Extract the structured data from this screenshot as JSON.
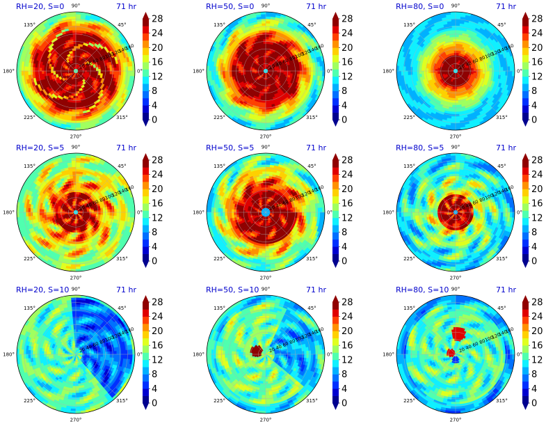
{
  "figure": {
    "time_label": "71 hr",
    "angle_labels": [
      "90°",
      "45°",
      "0°",
      "315°",
      "270°",
      "225°",
      "180°",
      "135°"
    ],
    "radial_labels": [
      "20",
      "40",
      "60",
      "80",
      "100",
      "120",
      "140",
      "160"
    ],
    "colorbar_ticks": [
      "0",
      "4",
      "8",
      "12",
      "16",
      "20",
      "24",
      "28"
    ],
    "colors": [
      "#00008f",
      "#0000d0",
      "#0030ff",
      "#0070ff",
      "#00b0ff",
      "#10f0ff",
      "#50ffaf",
      "#a0ff60",
      "#e0ff20",
      "#ffd000",
      "#ff9000",
      "#ff4000",
      "#e00000",
      "#900000"
    ]
  },
  "chart_data": [
    {
      "type": "heatmap",
      "projection": "polar",
      "title": "RH=20, S=0",
      "time": "71 hr",
      "colorbar": {
        "min": 0,
        "max": 28,
        "ticks": [
          0,
          4,
          8,
          12,
          16,
          20,
          24,
          28
        ],
        "extend": "both"
      },
      "radial_range": [
        0,
        160
      ],
      "angles_deg": [
        90,
        45,
        0,
        315,
        270,
        225,
        180,
        135
      ],
      "summary": {
        "peak": 28,
        "core_radius": 100,
        "env": 16
      }
    },
    {
      "type": "heatmap",
      "projection": "polar",
      "title": "RH=50, S=0",
      "time": "71 hr",
      "colorbar": {
        "min": 0,
        "max": 28,
        "ticks": [
          0,
          4,
          8,
          12,
          16,
          20,
          24,
          28
        ],
        "extend": "both"
      },
      "radial_range": [
        0,
        160
      ],
      "angles_deg": [
        90,
        45,
        0,
        315,
        270,
        225,
        180,
        135
      ],
      "summary": {
        "peak": 28,
        "core_radius": 80,
        "env": 14
      }
    },
    {
      "type": "heatmap",
      "projection": "polar",
      "title": "RH=80, S=0",
      "time": "71 hr",
      "colorbar": {
        "min": 0,
        "max": 28,
        "ticks": [
          0,
          4,
          8,
          12,
          16,
          20,
          24,
          28
        ],
        "extend": "both"
      },
      "radial_range": [
        0,
        160
      ],
      "angles_deg": [
        90,
        45,
        0,
        315,
        270,
        225,
        180,
        135
      ],
      "summary": {
        "peak": 28,
        "core_radius": 45,
        "env": 12
      }
    },
    {
      "type": "heatmap",
      "projection": "polar",
      "title": "RH=20, S=5",
      "time": "71 hr",
      "colorbar": {
        "min": 0,
        "max": 28,
        "ticks": [
          0,
          4,
          8,
          12,
          16,
          20,
          24,
          28
        ],
        "extend": "both"
      },
      "radial_range": [
        0,
        160
      ],
      "angles_deg": [
        90,
        45,
        0,
        315,
        270,
        225,
        180,
        135
      ],
      "summary": {
        "peak": 28,
        "core_radius": 60,
        "env": 17
      }
    },
    {
      "type": "heatmap",
      "projection": "polar",
      "title": "RH=50, S=5",
      "time": "71 hr",
      "colorbar": {
        "min": 0,
        "max": 28,
        "ticks": [
          0,
          4,
          8,
          12,
          16,
          20,
          24,
          28
        ],
        "extend": "both"
      },
      "radial_range": [
        0,
        160
      ],
      "angles_deg": [
        90,
        45,
        0,
        315,
        270,
        225,
        180,
        135
      ],
      "summary": {
        "peak": 28,
        "core_radius": 70,
        "env": 14
      }
    },
    {
      "type": "heatmap",
      "projection": "polar",
      "title": "RH=80, S=5",
      "time": "71 hr",
      "colorbar": {
        "min": 0,
        "max": 28,
        "ticks": [
          0,
          4,
          8,
          12,
          16,
          20,
          24,
          28
        ],
        "extend": "both"
      },
      "radial_range": [
        0,
        160
      ],
      "angles_deg": [
        90,
        45,
        0,
        315,
        270,
        225,
        180,
        135
      ],
      "summary": {
        "peak": 28,
        "core_radius": 40,
        "env": 12
      }
    },
    {
      "type": "heatmap",
      "projection": "polar",
      "title": "RH=20, S=10",
      "time": "71 hr",
      "colorbar": {
        "min": 0,
        "max": 28,
        "ticks": [
          0,
          4,
          8,
          12,
          16,
          20,
          24,
          28
        ],
        "extend": "both"
      },
      "radial_range": [
        0,
        160
      ],
      "angles_deg": [
        90,
        45,
        0,
        315,
        270,
        225,
        180,
        135
      ],
      "summary": {
        "peak": 14,
        "core_radius": 0,
        "env": 13
      }
    },
    {
      "type": "heatmap",
      "projection": "polar",
      "title": "RH=50, S=10",
      "time": "71 hr",
      "colorbar": {
        "min": 0,
        "max": 28,
        "ticks": [
          0,
          4,
          8,
          12,
          16,
          20,
          24,
          28
        ],
        "extend": "both"
      },
      "radial_range": [
        0,
        160
      ],
      "angles_deg": [
        90,
        45,
        0,
        315,
        270,
        225,
        180,
        135
      ],
      "summary": {
        "peak": 28,
        "core_radius": 0,
        "env": 14
      }
    },
    {
      "type": "heatmap",
      "projection": "polar",
      "title": "RH=80, S=10",
      "time": "71 hr",
      "colorbar": {
        "min": 0,
        "max": 28,
        "ticks": [
          0,
          4,
          8,
          12,
          16,
          20,
          24,
          28
        ],
        "extend": "both"
      },
      "radial_range": [
        0,
        160
      ],
      "angles_deg": [
        90,
        45,
        0,
        315,
        270,
        225,
        180,
        135
      ],
      "summary": {
        "peak": 28,
        "core_radius": 0,
        "env": 12
      }
    }
  ]
}
